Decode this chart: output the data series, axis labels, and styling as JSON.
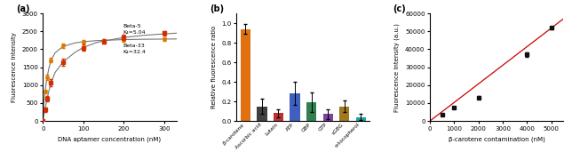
{
  "panel_a": {
    "label": "(a)",
    "xlabel": "DNA aptamer concentration (nM)",
    "ylabel": "Fluorescence Intensity",
    "xlim": [
      0,
      330
    ],
    "ylim": [
      0,
      3000
    ],
    "xticks": [
      0,
      100,
      200,
      300
    ],
    "yticks": [
      0,
      500,
      1000,
      1500,
      2000,
      2500,
      3000
    ],
    "series1": {
      "name": "Beta-5",
      "kd": "K₄=5.04",
      "color": "#d03000",
      "marker": "s",
      "curve_x": [
        0,
        2,
        5,
        10,
        15,
        20,
        30,
        50,
        80,
        100,
        130,
        150,
        200,
        250,
        300,
        330
      ],
      "curve_y": [
        0,
        150,
        320,
        600,
        850,
        1050,
        1350,
        1650,
        1920,
        2050,
        2180,
        2230,
        2330,
        2390,
        2430,
        2450
      ],
      "data_x": [
        0,
        5,
        10,
        20,
        50,
        100,
        150,
        200,
        300
      ],
      "data_y": [
        0,
        320,
        620,
        1060,
        1650,
        2040,
        2220,
        2340,
        2450
      ],
      "data_err": [
        30,
        60,
        80,
        100,
        100,
        90,
        70,
        80,
        60
      ]
    },
    "series2": {
      "name": "Beta-33",
      "kd": "K₄=32.4",
      "color": "#e07800",
      "marker": "o",
      "curve_x": [
        0,
        2,
        5,
        10,
        15,
        20,
        30,
        50,
        80,
        100,
        130,
        150,
        200,
        250,
        300,
        330
      ],
      "curve_y": [
        0,
        450,
        800,
        1200,
        1480,
        1680,
        1900,
        2080,
        2180,
        2210,
        2240,
        2250,
        2270,
        2280,
        2285,
        2288
      ],
      "data_x": [
        0,
        5,
        10,
        20,
        50,
        100,
        150,
        200,
        300
      ],
      "data_y": [
        0,
        820,
        1210,
        1700,
        2100,
        2210,
        2240,
        2265,
        2290
      ],
      "data_err": [
        30,
        60,
        70,
        70,
        70,
        50,
        50,
        50,
        50
      ]
    },
    "curve_color": "#777777"
  },
  "panel_b": {
    "label": "(b)",
    "ylabel": "Relative fluorescence ratio",
    "ylim": [
      0,
      1.1
    ],
    "yticks": [
      0.0,
      0.2,
      0.4,
      0.6,
      0.8,
      1.0
    ],
    "categories": [
      "β-carotene",
      "Ascorbic acid",
      "Lutein",
      "ATP",
      "GBP",
      "GTP",
      "sGBG",
      "α-tocopherol"
    ],
    "values": [
      0.94,
      0.15,
      0.08,
      0.28,
      0.19,
      0.07,
      0.15,
      0.04
    ],
    "errors": [
      0.05,
      0.08,
      0.04,
      0.12,
      0.1,
      0.05,
      0.06,
      0.03
    ],
    "colors": [
      "#e07010",
      "#404040",
      "#c03030",
      "#4060c0",
      "#308050",
      "#8040a0",
      "#a07820",
      "#20a0a0"
    ]
  },
  "panel_c": {
    "label": "(c)",
    "xlabel": "β-carotene contamination (nM)",
    "ylabel": "Fluorescence Intensity (a.u.)",
    "xlim": [
      0,
      5500
    ],
    "ylim": [
      0,
      60000
    ],
    "xticks": [
      0,
      1000,
      2000,
      3000,
      4000,
      5000
    ],
    "yticks": [
      0,
      10000,
      20000,
      30000,
      40000,
      50000,
      60000
    ],
    "data_x": [
      500,
      1000,
      2000,
      4000,
      5000
    ],
    "data_y": [
      3500,
      7500,
      13000,
      37000,
      52000
    ],
    "data_err": [
      400,
      600,
      800,
      1200,
      800
    ],
    "line_color": "#cc0000",
    "dot_color": "#111111",
    "fit_x": [
      0,
      5500
    ],
    "fit_y": [
      0,
      57000
    ]
  }
}
